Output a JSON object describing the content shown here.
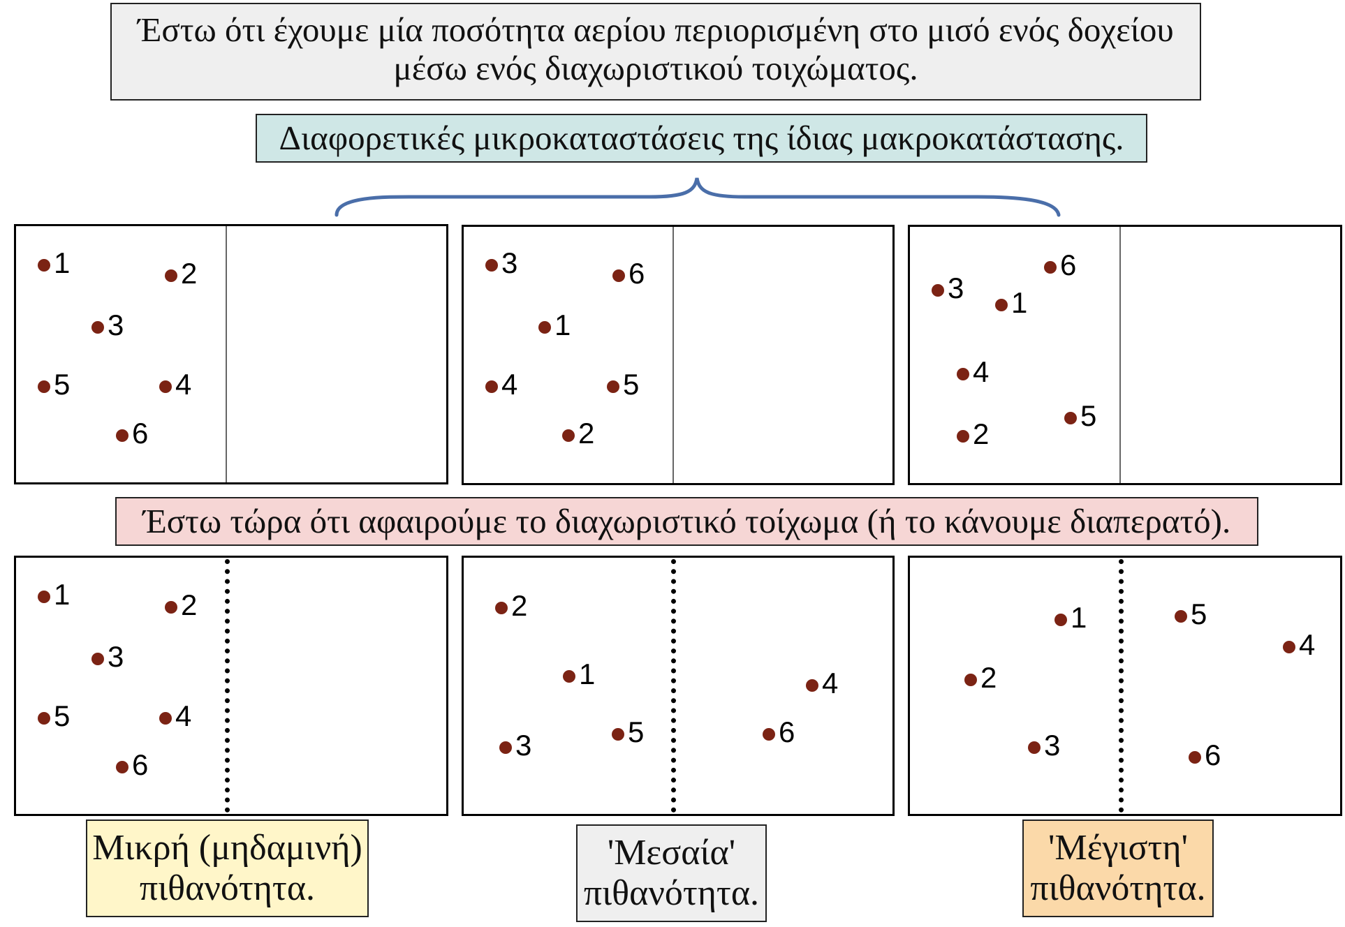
{
  "intro": {
    "line1": "Έστω ότι έχουμε μία ποσότητα αερίου περιορισμένη στο μισό ενός δοχείου",
    "line2": "μέσω ενός διαχωριστικού τοιχώματος."
  },
  "microstates_caption": "Διαφορετικές μικροκαταστάσεις της ίδιας μακροκατάστασης.",
  "remove_wall_caption": "Έστω τώρα ότι αφαιρούμε το διαχωριστικό τοίχωμα (ή το κάνουμε διαπερατό).",
  "top_boxes": [
    [
      "1",
      "2",
      "3",
      "5",
      "4",
      "6"
    ],
    [
      "3",
      "6",
      "1",
      "4",
      "5",
      "2"
    ],
    [
      "6",
      "3",
      "1",
      "4",
      "5",
      "2"
    ]
  ],
  "bottom_boxes": [
    [
      "1",
      "2",
      "3",
      "5",
      "4",
      "6"
    ],
    [
      "2",
      "1",
      "4",
      "3",
      "5",
      "6"
    ],
    [
      "1",
      "5",
      "4",
      "2",
      "3",
      "6"
    ]
  ],
  "probability_labels": {
    "small": {
      "line1": "Μικρή (μηδαμινή)",
      "line2": "πιθανότητα."
    },
    "medium": {
      "line1": "'Μεσαία'",
      "line2": "πιθανότητα."
    },
    "max": {
      "line1": "'Μέγιστη'",
      "line2": "πιθανότητα."
    }
  },
  "colors": {
    "molecule": "#7b2314",
    "brace": "#4a6ea9",
    "intro_bg": "#efefef",
    "microstates_bg": "#cfe7e6",
    "remove_bg": "#f6d6d5",
    "small_bg": "#fff6c9",
    "medium_bg": "#efefef",
    "max_bg": "#fbd9a9"
  }
}
